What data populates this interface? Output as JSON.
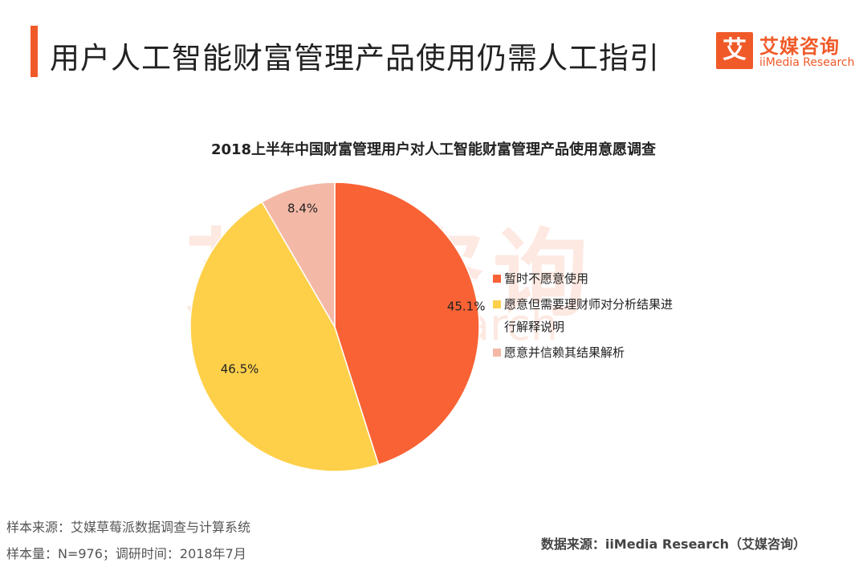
{
  "header": {
    "title": "用户人工智能财富管理产品使用仍需人工指引",
    "accent_color": "#f05a28"
  },
  "logo": {
    "mark": "艾",
    "name": "艾媒咨询",
    "sub": "iiMedia Research",
    "color": "#f05a28"
  },
  "watermark": {
    "text_cn": "艾媒咨询",
    "text_en": "iiMedia Research"
  },
  "chart_data": {
    "type": "pie",
    "title": "2018上半年中国财富管理用户对人工智能财富管理产品使用意愿调查",
    "unit": "%",
    "start_angle": "12 o'clock, clockwise",
    "legend_position": "right",
    "slices": [
      {
        "label": "暂时不愿意使用",
        "value": 45.1,
        "value_label": "45.1%",
        "color": "#f96235"
      },
      {
        "label": "愿意但需要理财师对分析结果进行解释说明",
        "label_lines": [
          "愿意但需要理财师对分析结果进",
          "行解释说明"
        ],
        "value": 46.5,
        "value_label": "46.5%",
        "color": "#fed04a"
      },
      {
        "label": "愿意并信赖其结果解析",
        "value": 8.4,
        "value_label": "8.4%",
        "color": "#f4b8a6"
      }
    ]
  },
  "footer": {
    "sample_source": "样本来源：艾媒草莓派数据调查与计算系统",
    "sample_size": "样本量：N=976；调研时间：2018年7月",
    "data_source": "数据来源：iiMedia Research（艾媒咨询）"
  }
}
